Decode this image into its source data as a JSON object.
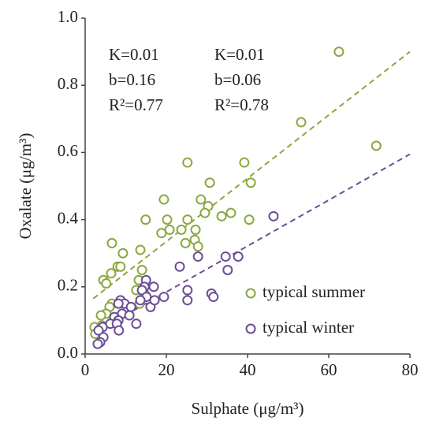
{
  "chart_data": {
    "type": "scatter",
    "xlabel": "Sulphate (μg/m³)",
    "ylabel": "Oxalate (μg/m³)",
    "xlim": [
      0,
      80
    ],
    "ylim": [
      0,
      1.0
    ],
    "xticks": [
      0,
      20,
      40,
      60,
      80
    ],
    "yticks": [
      {
        "value": 0,
        "label": "0.0"
      },
      0.2,
      0.4,
      0.6,
      0.8,
      {
        "value": 1,
        "label": "1.0"
      }
    ],
    "legend": "lower right",
    "series": [
      {
        "name": "typical summer",
        "color": "#8aa83e",
        "x": [
          62.5,
          53.2,
          71.7,
          25.2,
          39.2,
          40.8,
          30.7,
          19.4,
          28.5,
          30.3,
          14.9,
          20.2,
          25.2,
          33.6,
          35.9,
          40.4,
          29.5,
          20.8,
          18.8,
          23.7,
          27.2,
          24.7,
          27.0,
          27.8,
          6.6,
          13.6,
          9.3,
          4.5,
          6.4,
          8.0,
          8.7,
          14,
          13.2,
          5.2,
          12.6,
          14.6,
          13.4,
          6.6,
          6.0,
          5.2,
          3.9,
          2.3,
          2.5,
          4.1
        ],
        "y": [
          0.9,
          0.69,
          0.62,
          0.57,
          0.57,
          0.51,
          0.51,
          0.46,
          0.46,
          0.44,
          0.4,
          0.4,
          0.4,
          0.41,
          0.42,
          0.4,
          0.42,
          0.37,
          0.36,
          0.37,
          0.37,
          0.33,
          0.34,
          0.32,
          0.33,
          0.31,
          0.3,
          0.22,
          0.24,
          0.26,
          0.26,
          0.25,
          0.22,
          0.21,
          0.19,
          0.18,
          0.15,
          0.15,
          0.14,
          0.12,
          0.115,
          0.08,
          0.06,
          0.085
        ]
      },
      {
        "name": "typical winter",
        "color": "#6a4e96",
        "x": [
          46.4,
          37.7,
          34.6,
          35.1,
          27.8,
          23.3,
          31.1,
          31.6,
          25.2,
          25.2,
          19.4,
          15,
          14.6,
          16.9,
          14,
          15.1,
          16.1,
          13.6,
          17.1,
          8.7,
          9.7,
          11.3,
          8.2,
          9.1,
          10.9,
          7.2,
          8.2,
          6.2,
          7.8,
          12.6,
          8.3,
          4.3,
          3.3,
          4.5,
          3.7,
          3.1
        ],
        "y": [
          0.41,
          0.29,
          0.29,
          0.25,
          0.29,
          0.26,
          0.18,
          0.17,
          0.19,
          0.16,
          0.17,
          0.22,
          0.2,
          0.2,
          0.19,
          0.17,
          0.14,
          0.16,
          0.16,
          0.16,
          0.15,
          0.14,
          0.15,
          0.12,
          0.115,
          0.11,
          0.1,
          0.09,
          0.09,
          0.09,
          0.07,
          0.08,
          0.07,
          0.05,
          0.035,
          0.03
        ]
      }
    ],
    "trendlines": [
      {
        "color": "#8aa83e",
        "x": [
          2,
          80
        ],
        "y": [
          0.165,
          0.9
        ]
      },
      {
        "color": "#6a4e96",
        "x": [
          12,
          80
        ],
        "y": [
          0.13,
          0.595
        ]
      }
    ],
    "annotations": [
      {
        "text": "K=0.01",
        "color": "#8aa83e"
      },
      {
        "text": "b=0.16",
        "color": "#8aa83e"
      },
      {
        "text": "R²=0.77",
        "color": "#8aa83e"
      },
      {
        "text": "K=0.01",
        "color": "#6a4e96"
      },
      {
        "text": "b=0.06",
        "color": "#6a4e96"
      },
      {
        "text": "R²=0.78",
        "color": "#6a4e96"
      }
    ]
  }
}
